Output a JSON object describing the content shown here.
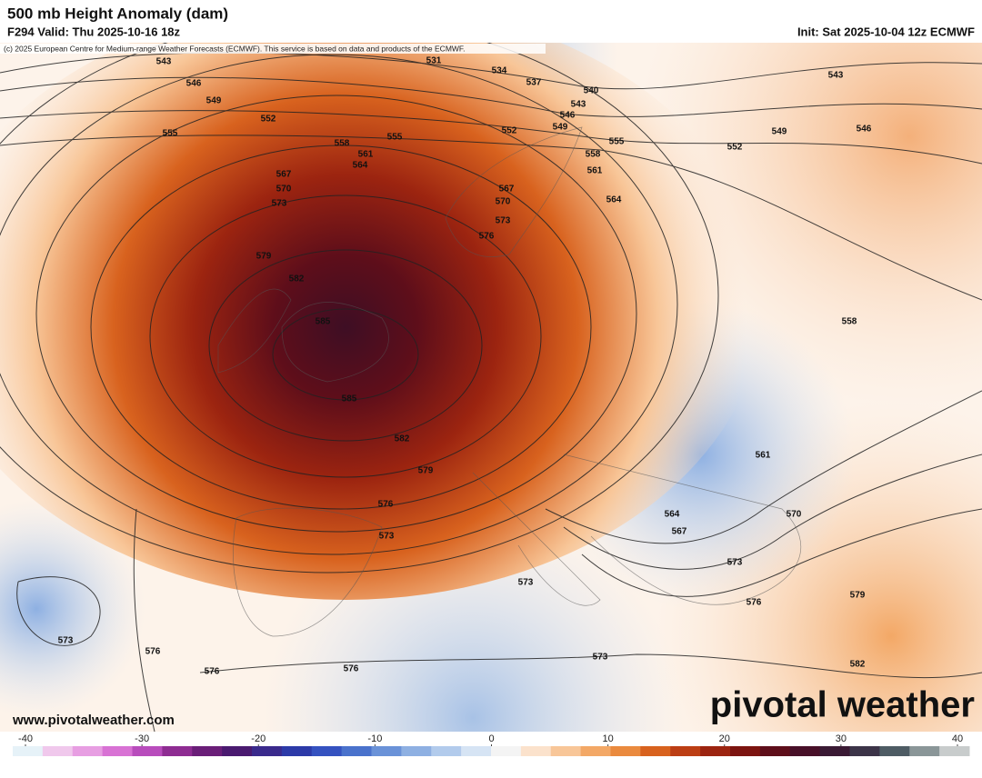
{
  "header": {
    "title": "500 mb Height Anomaly (dam)",
    "valid": "F294 Valid: Thu 2025-10-16 18z",
    "init": "Init: Sat 2025-10-04 12z ECMWF",
    "copyright": "(c) 2025 European Centre for Medium-range Weather Forecasts (ECMWF). This service is based on data and products of the ECMWF."
  },
  "contour_labels": [
    "543",
    "531",
    "534",
    "537",
    "540",
    "543",
    "546",
    "549",
    "546",
    "549",
    "552",
    "555",
    "555",
    "552",
    "555",
    "558",
    "561",
    "564",
    "558",
    "561",
    "564",
    "567",
    "570",
    "573",
    "567",
    "570",
    "573",
    "576",
    "579",
    "582",
    "585",
    "585",
    "582",
    "579",
    "576",
    "573",
    "573",
    "573",
    "576",
    "576",
    "576",
    "573",
    "582",
    "579",
    "576",
    "573",
    "570",
    "567",
    "564",
    "561",
    "558",
    "552",
    "549",
    "546",
    "543"
  ],
  "website": "www.pivotalweather.com",
  "logo": "pivotal weather",
  "colorbar": {
    "ticks": [
      -40,
      -30,
      -20,
      -10,
      0,
      10,
      20,
      30,
      40
    ],
    "colors": [
      "#e6f2f8",
      "#f0c8ec",
      "#e79ee2",
      "#d872d4",
      "#b84cbc",
      "#8e2c92",
      "#6a1e78",
      "#4a1a70",
      "#3a2a8c",
      "#2c3aa8",
      "#3552c0",
      "#4a72cc",
      "#6a92d8",
      "#8eb0e2",
      "#b2cbec",
      "#d6e4f4",
      "#f4f4f4",
      "#fbe2cc",
      "#f8c698",
      "#f3a866",
      "#ea8a3e",
      "#d8621e",
      "#bc3e14",
      "#9c2410",
      "#7c1410",
      "#5e0e1a",
      "#481028",
      "#3a1a34",
      "#3c3448",
      "#4e5c64",
      "#8a9698",
      "#c8cccc"
    ]
  }
}
